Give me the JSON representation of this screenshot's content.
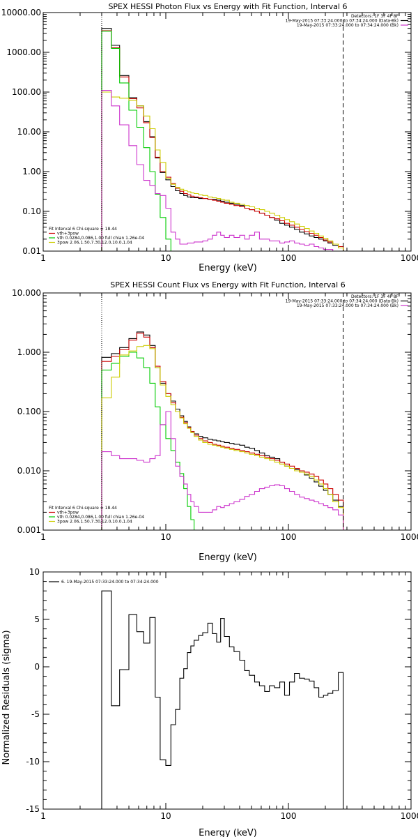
{
  "chart_data": [
    {
      "type": "line",
      "title": "SPEX HESSI Photon Flux vs Energy with Fit Function, Interval 6",
      "xlabel": "Energy (keV)",
      "ylabel": "",
      "xscale": "log",
      "yscale": "log",
      "xlim": [
        1,
        1000
      ],
      "ylim": [
        0.01,
        10000
      ],
      "x_ticks": [
        "1",
        "10",
        "100",
        "1000"
      ],
      "y_ticks": [
        "0.01",
        "0.10",
        "1.00",
        "10.00",
        "100.00",
        "1000.00",
        "10000.00"
      ],
      "header_lines": [
        "Detectors: 1F 3F 4F 8F",
        "19-May-2015 07:33:24.000 to 07:34:24.000 (Data-Bk)",
        "19-May-2015 07:33:24.000 to 07:34:24.000 (Bk)"
      ],
      "header_colors": [
        "",
        "#000000",
        "#cc33cc"
      ],
      "legend_lines": [
        "Fit Interval 6   Chi-square = 18.44",
        "vth+3pow",
        "vth 0.0284,0.086,1.00  full chian 1.26e-04",
        "3pow 2.06,1.50,7.30,12.0,10.0,1.04"
      ],
      "legend_colors": [
        "",
        "#cc0000",
        "#00cc00",
        "#cccc00"
      ],
      "vlines": [
        {
          "x": 3.0,
          "style": "dotted"
        },
        {
          "x": 280,
          "style": "dashed"
        }
      ],
      "edges": [
        3.0,
        3.6,
        4.2,
        5.0,
        5.8,
        6.6,
        7.4,
        8.2,
        9.0,
        10.0,
        11.0,
        12.0,
        13.0,
        14.0,
        15.0,
        16.0,
        17.0,
        18.5,
        20,
        22,
        24,
        26,
        28,
        30,
        33,
        36,
        40,
        44,
        48,
        53,
        58,
        64,
        70,
        77,
        85,
        93,
        102,
        112,
        123,
        135,
        148,
        162,
        177,
        193,
        210,
        230,
        255,
        280
      ],
      "series": [
        {
          "name": "Data",
          "color": "#000000",
          "values": [
            4000,
            1500,
            260,
            72,
            45,
            18,
            7.5,
            2.2,
            0.95,
            0.62,
            0.42,
            0.33,
            0.28,
            0.25,
            0.23,
            0.22,
            0.22,
            0.21,
            0.21,
            0.2,
            0.2,
            0.19,
            0.18,
            0.17,
            0.16,
            0.15,
            0.14,
            0.12,
            0.11,
            0.1,
            0.09,
            0.08,
            0.07,
            0.06,
            0.05,
            0.045,
            0.04,
            0.035,
            0.03,
            0.027,
            0.024,
            0.022,
            0.02,
            0.018,
            0.016,
            0.014,
            0.012
          ]
        },
        {
          "name": "vth+3pow",
          "color": "#cc0000",
          "values": [
            3500,
            1300,
            240,
            68,
            40,
            17,
            7.2,
            2.3,
            1.0,
            0.72,
            0.5,
            0.38,
            0.32,
            0.28,
            0.26,
            0.24,
            0.23,
            0.22,
            0.21,
            0.2,
            0.19,
            0.18,
            0.17,
            0.16,
            0.15,
            0.14,
            0.13,
            0.12,
            0.11,
            0.1,
            0.09,
            0.08,
            0.07,
            0.065,
            0.058,
            0.05,
            0.045,
            0.04,
            0.035,
            0.031,
            0.028,
            0.025,
            0.022,
            0.019,
            0.017,
            0.015,
            0.013
          ]
        },
        {
          "name": "vth",
          "color": "#00cc00",
          "values": [
            3400,
            1250,
            170,
            35,
            13,
            4.0,
            1.0,
            0.27,
            0.07,
            0.02,
            0.006
          ]
        },
        {
          "name": "3pow",
          "color": "#cccc00",
          "values": [
            100,
            75,
            70,
            62,
            45,
            25,
            12,
            3.5,
            1.7,
            0.68,
            0.48,
            0.4,
            0.36,
            0.33,
            0.31,
            0.29,
            0.28,
            0.26,
            0.25,
            0.23,
            0.22,
            0.21,
            0.2,
            0.19,
            0.17,
            0.16,
            0.15,
            0.14,
            0.13,
            0.12,
            0.11,
            0.1,
            0.09,
            0.08,
            0.07,
            0.062,
            0.055,
            0.048,
            0.042,
            0.037,
            0.032,
            0.028,
            0.024,
            0.021,
            0.018,
            0.015,
            0.012
          ]
        },
        {
          "name": "Bk",
          "color": "#cc33cc",
          "values": [
            110,
            45,
            15,
            4.5,
            1.5,
            0.6,
            0.45,
            0.28,
            0.25,
            0.12,
            0.03,
            0.02,
            0.015,
            0.015,
            0.016,
            0.016,
            0.017,
            0.017,
            0.018,
            0.02,
            0.025,
            0.03,
            0.025,
            0.022,
            0.025,
            0.022,
            0.025,
            0.02,
            0.025,
            0.03,
            0.02,
            0.02,
            0.018,
            0.018,
            0.016,
            0.017,
            0.018,
            0.016,
            0.015,
            0.014,
            0.015,
            0.013,
            0.012,
            0.011,
            0.011,
            0.01,
            0.01
          ]
        }
      ]
    },
    {
      "type": "line",
      "title": "SPEX HESSI Count Flux vs Energy with Fit Function, Interval 6",
      "xlabel": "Energy (keV)",
      "ylabel": "",
      "xscale": "log",
      "yscale": "log",
      "xlim": [
        1,
        1000
      ],
      "ylim": [
        0.001,
        10
      ],
      "x_ticks": [
        "1",
        "10",
        "100",
        "1000"
      ],
      "y_ticks": [
        "0.001",
        "0.010",
        "0.100",
        "1.000",
        "10.000"
      ],
      "header_lines": [
        "Detectors: 1F 3F 4F 8F",
        "19-May-2015 07:33:24.000 to 07:34:24.000 (Data-Bk)",
        "19-May-2015 07:33:24.000 to 07:34:24.000 (Bk)"
      ],
      "header_colors": [
        "",
        "#000000",
        "#cc33cc"
      ],
      "legend_lines": [
        "Fit Interval 6   Chi-square = 18.44",
        "vth+3pow",
        "vth 0.0284,0.086,1.00  full chian 1.26e-04",
        "3pow 2.06,1.50,7.30,12.0,10.0,1.04"
      ],
      "legend_colors": [
        "",
        "#cc0000",
        "#00cc00",
        "#cccc00"
      ],
      "vlines": [
        {
          "x": 3.0,
          "style": "dotted"
        },
        {
          "x": 280,
          "style": "dashed"
        }
      ],
      "edges": [
        3.0,
        3.6,
        4.2,
        5.0,
        5.8,
        6.6,
        7.4,
        8.2,
        9.0,
        10.0,
        11.0,
        12.0,
        13.0,
        14.0,
        15.0,
        16.0,
        17.0,
        18.5,
        20,
        22,
        24,
        26,
        28,
        30,
        33,
        36,
        40,
        44,
        48,
        53,
        58,
        64,
        70,
        77,
        85,
        93,
        102,
        112,
        123,
        135,
        148,
        162,
        177,
        193,
        210,
        230,
        255,
        280
      ],
      "series": [
        {
          "name": "Data",
          "color": "#000000",
          "values": [
            0.82,
            0.95,
            1.2,
            1.7,
            2.2,
            1.95,
            1.3,
            0.55,
            0.3,
            0.2,
            0.15,
            0.11,
            0.085,
            0.068,
            0.055,
            0.046,
            0.042,
            0.038,
            0.036,
            0.034,
            0.033,
            0.032,
            0.031,
            0.03,
            0.029,
            0.028,
            0.027,
            0.025,
            0.024,
            0.022,
            0.02,
            0.018,
            0.017,
            0.016,
            0.014,
            0.012,
            0.011,
            0.0105,
            0.0095,
            0.0085,
            0.0075,
            0.0065,
            0.0055,
            0.0047,
            0.004,
            0.0032,
            0.0025
          ]
        },
        {
          "name": "vth+3pow",
          "color": "#cc0000",
          "values": [
            0.7,
            0.85,
            1.1,
            1.6,
            2.1,
            1.8,
            1.2,
            0.58,
            0.32,
            0.2,
            0.14,
            0.1,
            0.08,
            0.065,
            0.054,
            0.046,
            0.04,
            0.035,
            0.032,
            0.03,
            0.028,
            0.027,
            0.026,
            0.025,
            0.024,
            0.023,
            0.022,
            0.021,
            0.02,
            0.019,
            0.018,
            0.017,
            0.016,
            0.015,
            0.014,
            0.013,
            0.012,
            0.011,
            0.01,
            0.0095,
            0.0088,
            0.008,
            0.007,
            0.006,
            0.005,
            0.004,
            0.0032
          ]
        },
        {
          "name": "vth",
          "color": "#00cc00",
          "values": [
            0.5,
            0.65,
            0.85,
            1.0,
            0.8,
            0.55,
            0.3,
            0.12,
            0.06,
            0.035,
            0.022,
            0.014,
            0.009,
            0.005,
            0.0025,
            0.0015,
            0.001
          ]
        },
        {
          "name": "3pow",
          "color": "#cccc00",
          "values": [
            0.17,
            0.38,
            0.9,
            1.05,
            1.25,
            1.3,
            1.15,
            0.55,
            0.28,
            0.18,
            0.13,
            0.1,
            0.078,
            0.062,
            0.052,
            0.044,
            0.038,
            0.033,
            0.03,
            0.028,
            0.027,
            0.026,
            0.025,
            0.024,
            0.023,
            0.022,
            0.021,
            0.02,
            0.019,
            0.018,
            0.017,
            0.016,
            0.015,
            0.014,
            0.013,
            0.012,
            0.011,
            0.01,
            0.0095,
            0.0088,
            0.008,
            0.007,
            0.006,
            0.005,
            0.004,
            0.003,
            0.0024
          ]
        },
        {
          "name": "Bk",
          "color": "#cc33cc",
          "values": [
            0.021,
            0.018,
            0.016,
            0.016,
            0.015,
            0.014,
            0.016,
            0.018,
            0.06,
            0.1,
            0.035,
            0.012,
            0.008,
            0.006,
            0.004,
            0.003,
            0.0025,
            0.002,
            0.002,
            0.002,
            0.0022,
            0.0025,
            0.0024,
            0.0026,
            0.0028,
            0.003,
            0.0033,
            0.0037,
            0.004,
            0.0045,
            0.005,
            0.0053,
            0.0056,
            0.0058,
            0.0056,
            0.005,
            0.0045,
            0.004,
            0.0036,
            0.0034,
            0.0032,
            0.003,
            0.0028,
            0.0026,
            0.0024,
            0.0022,
            0.0018
          ]
        }
      ]
    },
    {
      "type": "line",
      "title": "",
      "xlabel": "Energy (keV)",
      "ylabel": "Normalized Residuals (sigma)",
      "xscale": "log",
      "yscale": "linear",
      "xlim": [
        1,
        1000
      ],
      "ylim": [
        -15,
        10
      ],
      "x_ticks": [
        "1",
        "10",
        "100",
        "1000"
      ],
      "y_ticks": [
        "-15",
        "-10",
        "-5",
        "0",
        "5",
        "10"
      ],
      "legend_lines": [
        "6. 19-May-2015 07:33:24.000 to 07:34:24.000"
      ],
      "legend_colors": [
        "#000000"
      ],
      "edges": [
        3.0,
        3.6,
        4.2,
        5.0,
        5.8,
        6.6,
        7.4,
        8.2,
        9.0,
        10.0,
        11.0,
        12.0,
        13.0,
        14.0,
        15.0,
        16.0,
        17.0,
        18.5,
        20,
        22,
        24,
        26,
        28,
        30,
        33,
        36,
        40,
        44,
        48,
        53,
        58,
        64,
        70,
        77,
        85,
        93,
        102,
        112,
        123,
        135,
        148,
        162,
        177,
        193,
        210,
        230,
        255,
        280
      ],
      "series": [
        {
          "name": "6. 19-May-2015 07:33:24.000 to 07:34:24.000",
          "color": "#000000",
          "values": [
            8.0,
            -4.1,
            -0.3,
            5.5,
            3.7,
            2.5,
            5.2,
            -3.2,
            -9.8,
            -10.4,
            -6.1,
            -4.5,
            -1.2,
            -0.2,
            1.5,
            2.2,
            2.8,
            3.3,
            3.6,
            4.6,
            3.5,
            2.6,
            5.1,
            3.2,
            2.1,
            1.6,
            0.7,
            -0.4,
            -0.9,
            -1.6,
            -2.0,
            -2.6,
            -2.0,
            -2.2,
            -1.6,
            -3.0,
            -1.6,
            -0.7,
            -1.2,
            -1.3,
            -1.5,
            -2.2,
            -3.2,
            -3.0,
            -2.8,
            -2.5,
            -0.6
          ]
        }
      ]
    }
  ]
}
